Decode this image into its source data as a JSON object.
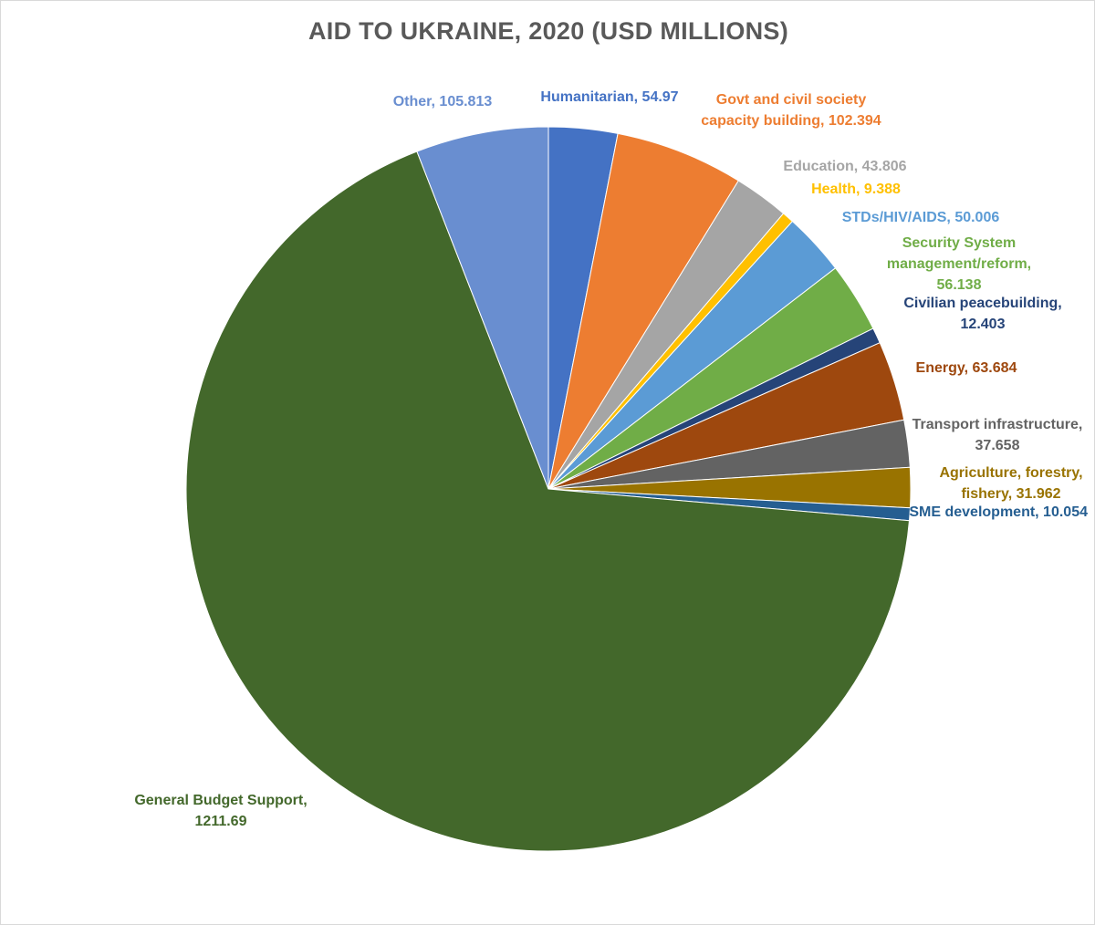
{
  "chart_data": {
    "type": "pie",
    "title": "AID TO UKRAINE, 2020 (USD MILLIONS)",
    "slices": [
      {
        "name": "Humanitarian",
        "value": 54.97,
        "value_label": "54.97",
        "color": "#4472C4"
      },
      {
        "name": "Govt and civil society capacity building",
        "value": 102.394,
        "value_label": "102.394",
        "color": "#ED7D31"
      },
      {
        "name": "Education",
        "value": 43.806,
        "value_label": "43.806",
        "color": "#A5A5A5"
      },
      {
        "name": "Health",
        "value": 9.388,
        "value_label": "9.388",
        "color": "#FFC000"
      },
      {
        "name": "STDs/HIV/AIDS",
        "value": 50.006,
        "value_label": "50.006",
        "color": "#5B9BD5"
      },
      {
        "name": "Security System management/reform",
        "value": 56.138,
        "value_label": "56.138",
        "color": "#70AD47"
      },
      {
        "name": "Civilian peacebuilding",
        "value": 12.403,
        "value_label": "12.403",
        "color": "#264478"
      },
      {
        "name": "Energy",
        "value": 63.684,
        "value_label": "63.684",
        "color": "#9E480E"
      },
      {
        "name": "Transport infrastructure",
        "value": 37.658,
        "value_label": "37.658",
        "color": "#636363"
      },
      {
        "name": "Agriculture, forestry, fishery",
        "value": 31.962,
        "value_label": "31.962",
        "color": "#997300"
      },
      {
        "name": "SME development",
        "value": 10.054,
        "value_label": "10.054",
        "color": "#255E91"
      },
      {
        "name": "General Budget Support",
        "value": 1211.69,
        "value_label": "1211.69",
        "color": "#43682B"
      },
      {
        "name": "Other",
        "value": 105.813,
        "value_label": "105.813",
        "color": "#698ED0"
      }
    ],
    "labels": [
      {
        "lines": [
          "Humanitarian, 54.97"
        ],
        "color": "#4472C4"
      },
      {
        "lines": [
          "Govt and civil society",
          "capacity building, 102.394"
        ],
        "color": "#ED7D31"
      },
      {
        "lines": [
          "Education, 43.806"
        ],
        "color": "#A5A5A5"
      },
      {
        "lines": [
          "Health, 9.388"
        ],
        "color": "#FFC000"
      },
      {
        "lines": [
          "STDs/HIV/AIDS, 50.006"
        ],
        "color": "#5B9BD5"
      },
      {
        "lines": [
          "Security System",
          "management/reform,",
          "56.138"
        ],
        "color": "#70AD47"
      },
      {
        "lines": [
          "Civilian peacebuilding,",
          "12.403"
        ],
        "color": "#264478"
      },
      {
        "lines": [
          "Energy, 63.684"
        ],
        "color": "#9E480E"
      },
      {
        "lines": [
          "Transport infrastructure,",
          "37.658"
        ],
        "color": "#636363"
      },
      {
        "lines": [
          "Agriculture, forestry,",
          "fishery, 31.962"
        ],
        "color": "#997300"
      },
      {
        "lines": [
          "SME development, 10.054"
        ],
        "color": "#255E91"
      },
      {
        "lines": [
          "General Budget Support,",
          "1211.69"
        ],
        "color": "#43682B"
      },
      {
        "lines": [
          "Other, 105.813"
        ],
        "color": "#698ED0"
      }
    ],
    "start_angle_deg": 0,
    "direction": "clockwise",
    "legend": "none"
  }
}
